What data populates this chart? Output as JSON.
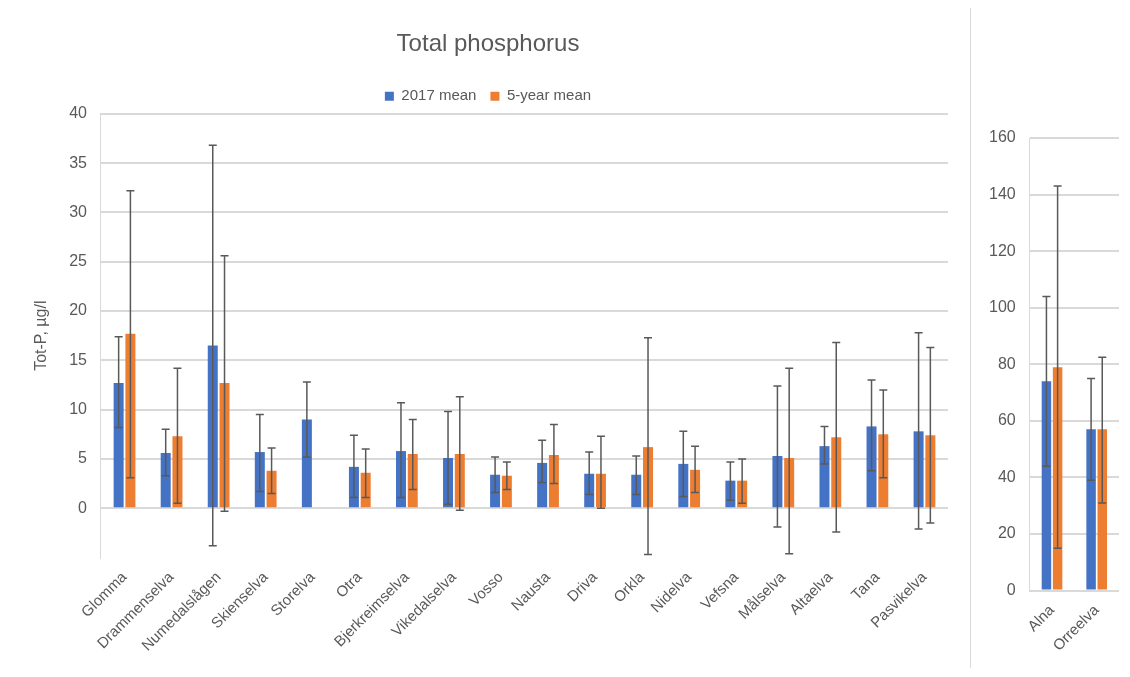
{
  "chart_data": [
    {
      "type": "bar",
      "title": "Total phosphorus",
      "ylabel": "Tot-P, µg/l",
      "legend": "top",
      "grid": "y",
      "categories": [
        "Glomma",
        "Drammenselva",
        "Numedalslågen",
        "Skienselva",
        "Storelva",
        "Otra",
        "Bjerkreimselva",
        "Vikedalselva",
        "Vosso",
        "Nausta",
        "Driva",
        "Orkla",
        "Nidelva",
        "Vefsna",
        "Målselva",
        "Altaelva",
        "Tana",
        "Pasvikelva"
      ],
      "ylim": [
        -5,
        40
      ],
      "yticks": [
        0,
        5,
        10,
        15,
        20,
        25,
        30,
        35,
        40
      ],
      "series": [
        {
          "name": "2017 mean",
          "color": "#4472c4",
          "values": [
            12.7,
            5.6,
            16.5,
            5.7,
            9.0,
            4.2,
            5.8,
            5.1,
            3.4,
            4.6,
            3.5,
            3.4,
            4.5,
            2.8,
            5.3,
            6.3,
            8.3,
            7.8
          ],
          "errors": [
            [
              8.2,
              17.4
            ],
            [
              3.3,
              8.0
            ],
            [
              -3.8,
              36.8
            ],
            [
              1.7,
              9.5
            ],
            [
              5.2,
              12.8
            ],
            [
              1.1,
              7.4
            ],
            [
              1.1,
              10.7
            ],
            [
              0.4,
              9.8
            ],
            [
              1.6,
              5.2
            ],
            [
              2.6,
              6.9
            ],
            [
              1.4,
              5.7
            ],
            [
              1.4,
              5.3
            ],
            [
              1.2,
              7.8
            ],
            [
              0.8,
              4.7
            ],
            [
              -1.9,
              12.4
            ],
            [
              4.5,
              8.3
            ],
            [
              3.8,
              13.0
            ],
            [
              -2.1,
              17.8
            ]
          ]
        },
        {
          "name": "5-year mean",
          "color": "#ed7d31",
          "values": [
            17.7,
            7.3,
            12.7,
            3.8,
            null,
            3.6,
            5.5,
            5.5,
            3.3,
            5.4,
            3.5,
            6.2,
            3.9,
            2.8,
            5.1,
            7.2,
            7.5,
            7.4
          ],
          "errors": [
            [
              3.1,
              32.2
            ],
            [
              0.5,
              14.2
            ],
            [
              -0.3,
              25.6
            ],
            [
              1.5,
              6.1
            ],
            null,
            [
              1.1,
              6.0
            ],
            [
              1.9,
              9.0
            ],
            [
              -0.2,
              11.3
            ],
            [
              1.9,
              4.7
            ],
            [
              2.5,
              8.5
            ],
            [
              0.0,
              7.3
            ],
            [
              -4.7,
              17.3
            ],
            [
              1.6,
              6.3
            ],
            [
              0.5,
              5.0
            ],
            [
              -4.6,
              14.2
            ],
            [
              -2.4,
              16.8
            ],
            [
              3.1,
              12.0
            ],
            [
              -1.5,
              16.3
            ]
          ]
        }
      ]
    },
    {
      "type": "bar",
      "grid": "y",
      "categories": [
        "Alna",
        "Orreelva"
      ],
      "ylim": [
        0,
        160
      ],
      "yticks": [
        0,
        20,
        40,
        60,
        80,
        100,
        120,
        140,
        160
      ],
      "series": [
        {
          "color": "#4472c4",
          "values": [
            74,
            57
          ],
          "errors": [
            [
              44,
              104
            ],
            [
              39,
              75
            ]
          ]
        },
        {
          "color": "#ed7d31",
          "values": [
            79,
            57
          ],
          "errors": [
            [
              15,
              143
            ],
            [
              31,
              82.5
            ]
          ]
        }
      ]
    }
  ]
}
